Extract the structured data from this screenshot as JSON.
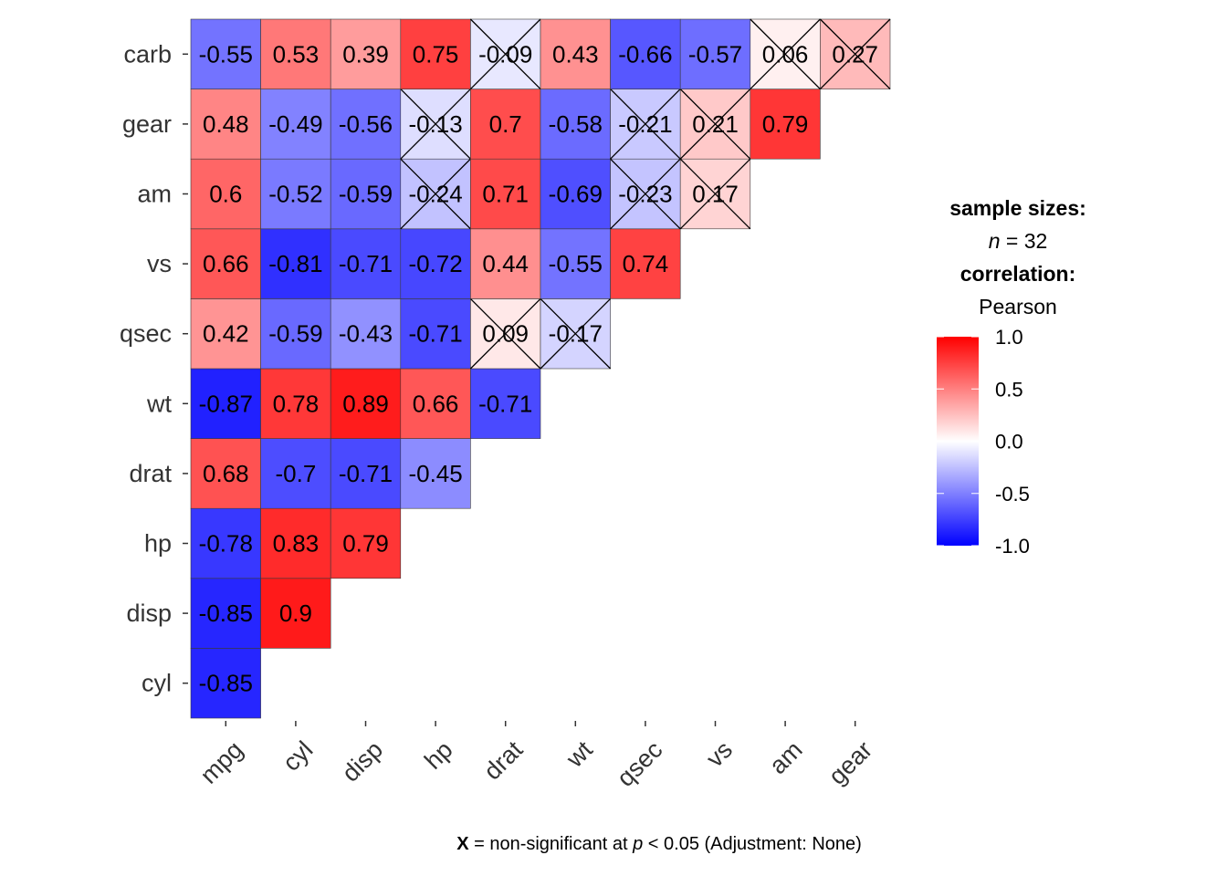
{
  "chart_data": {
    "type": "heatmap",
    "x_labels": [
      "mpg",
      "cyl",
      "disp",
      "hp",
      "drat",
      "wt",
      "qsec",
      "vs",
      "am",
      "gear"
    ],
    "y_labels": [
      "cyl",
      "disp",
      "hp",
      "drat",
      "wt",
      "qsec",
      "vs",
      "am",
      "gear",
      "carb"
    ],
    "rows": [
      {
        "label": "cyl",
        "values": [
          -0.85
        ]
      },
      {
        "label": "disp",
        "values": [
          -0.85,
          0.9
        ]
      },
      {
        "label": "hp",
        "values": [
          -0.78,
          0.83,
          0.79
        ]
      },
      {
        "label": "drat",
        "values": [
          0.68,
          -0.7,
          -0.71,
          -0.45
        ]
      },
      {
        "label": "wt",
        "values": [
          -0.87,
          0.78,
          0.89,
          0.66,
          -0.71
        ]
      },
      {
        "label": "qsec",
        "values": [
          0.42,
          -0.59,
          -0.43,
          -0.71,
          0.09,
          -0.17
        ]
      },
      {
        "label": "vs",
        "values": [
          0.66,
          -0.81,
          -0.71,
          -0.72,
          0.44,
          -0.55,
          0.74
        ]
      },
      {
        "label": "am",
        "values": [
          0.6,
          -0.52,
          -0.59,
          -0.24,
          0.71,
          -0.69,
          -0.23,
          0.17
        ]
      },
      {
        "label": "gear",
        "values": [
          0.48,
          -0.49,
          -0.56,
          -0.13,
          0.7,
          -0.58,
          -0.21,
          0.21,
          0.79
        ]
      },
      {
        "label": "carb",
        "values": [
          -0.55,
          0.53,
          0.39,
          0.75,
          -0.09,
          0.43,
          -0.66,
          -0.57,
          0.06,
          0.27
        ]
      }
    ],
    "nonsignificant": [
      [
        "qsec",
        "drat"
      ],
      [
        "qsec",
        "wt"
      ],
      [
        "am",
        "hp"
      ],
      [
        "am",
        "qsec"
      ],
      [
        "am",
        "vs"
      ],
      [
        "gear",
        "hp"
      ],
      [
        "gear",
        "qsec"
      ],
      [
        "gear",
        "vs"
      ],
      [
        "carb",
        "drat"
      ],
      [
        "carb",
        "am"
      ],
      [
        "carb",
        "gear"
      ]
    ],
    "color_scale": {
      "low": "#0000FF",
      "mid": "#FFFFFF",
      "high": "#FF0000",
      "limits": [
        -1,
        1
      ]
    },
    "legend": {
      "ticks": [
        "1.0",
        "0.5",
        "0.0",
        "-0.5",
        "-1.0"
      ],
      "placement": "right"
    }
  },
  "legend_text": {
    "sample_sizes_title": "sample sizes:",
    "n_symbol": "n",
    "n_value": " = 32",
    "correlation_title": "correlation:",
    "correlation_method": "Pearson"
  },
  "caption": {
    "x_mark": "X",
    "text_before_p": " = non-significant at ",
    "p_symbol": "p",
    "text_after_p": " < 0.05 (Adjustment: None)"
  }
}
